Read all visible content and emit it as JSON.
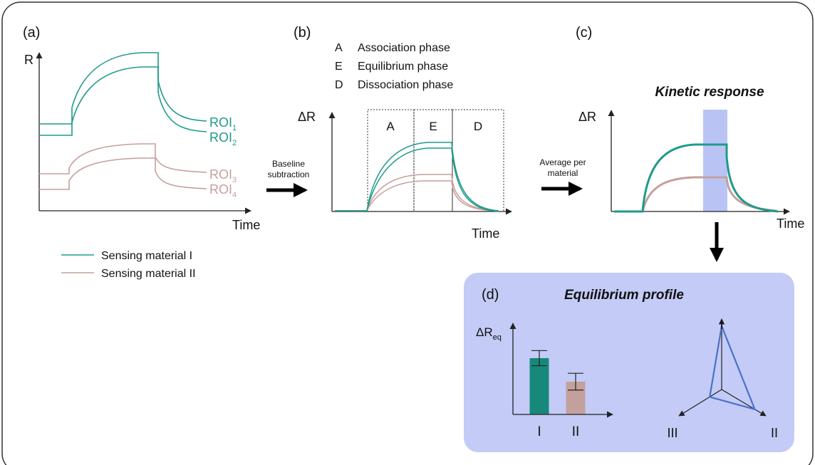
{
  "colors": {
    "material_1": "#1f9a8a",
    "material_1_dark": "#17897a",
    "material_2": "#c4a09c",
    "highlight_band": "#b9c4f5",
    "panel_d_bg": "#c3cbf6",
    "radar_line": "#4a72c8",
    "frame": "#333333"
  },
  "panel_a": {
    "label": "(a)",
    "y_axis_label": "R",
    "x_axis_label": "Time",
    "roi_labels": [
      {
        "base": "ROI",
        "sub": "1"
      },
      {
        "base": "ROI",
        "sub": "2"
      },
      {
        "base": "ROI",
        "sub": "3"
      },
      {
        "base": "ROI",
        "sub": "4"
      }
    ]
  },
  "legend": {
    "items": [
      {
        "label": "Sensing material I",
        "color": "#1f9a8a"
      },
      {
        "label": "Sensing material II",
        "color": "#c4a09c"
      }
    ]
  },
  "arrow_1_label": {
    "line1": "Baseline",
    "line2": "subtraction"
  },
  "panel_b": {
    "label": "(b)",
    "phases": [
      {
        "letter": "A",
        "name": "Association phase"
      },
      {
        "letter": "E",
        "name": "Equilibrium phase"
      },
      {
        "letter": "D",
        "name": "Dissociation phase"
      }
    ],
    "y_axis_label": "ΔR",
    "x_axis_label": "Time"
  },
  "arrow_2_label": {
    "line1": "Average per",
    "line2": "material"
  },
  "panel_c": {
    "label": "(c)",
    "title": "Kinetic response",
    "y_axis_label": "ΔR",
    "x_axis_label": "Time"
  },
  "panel_d": {
    "label": "(d)",
    "title": "Equilibrium profile",
    "y_axis_label_base": "ΔR",
    "y_axis_label_sub": "eq",
    "chart_data": {
      "type": "bar",
      "categories": [
        "I",
        "II"
      ],
      "values": [
        0.67,
        0.39
      ],
      "error": [
        0.09,
        0.1
      ],
      "ylim": [
        0,
        1
      ]
    },
    "radar": {
      "axes": [
        "I",
        "II",
        "III"
      ],
      "values": [
        0.9,
        0.75,
        0.28
      ]
    }
  }
}
